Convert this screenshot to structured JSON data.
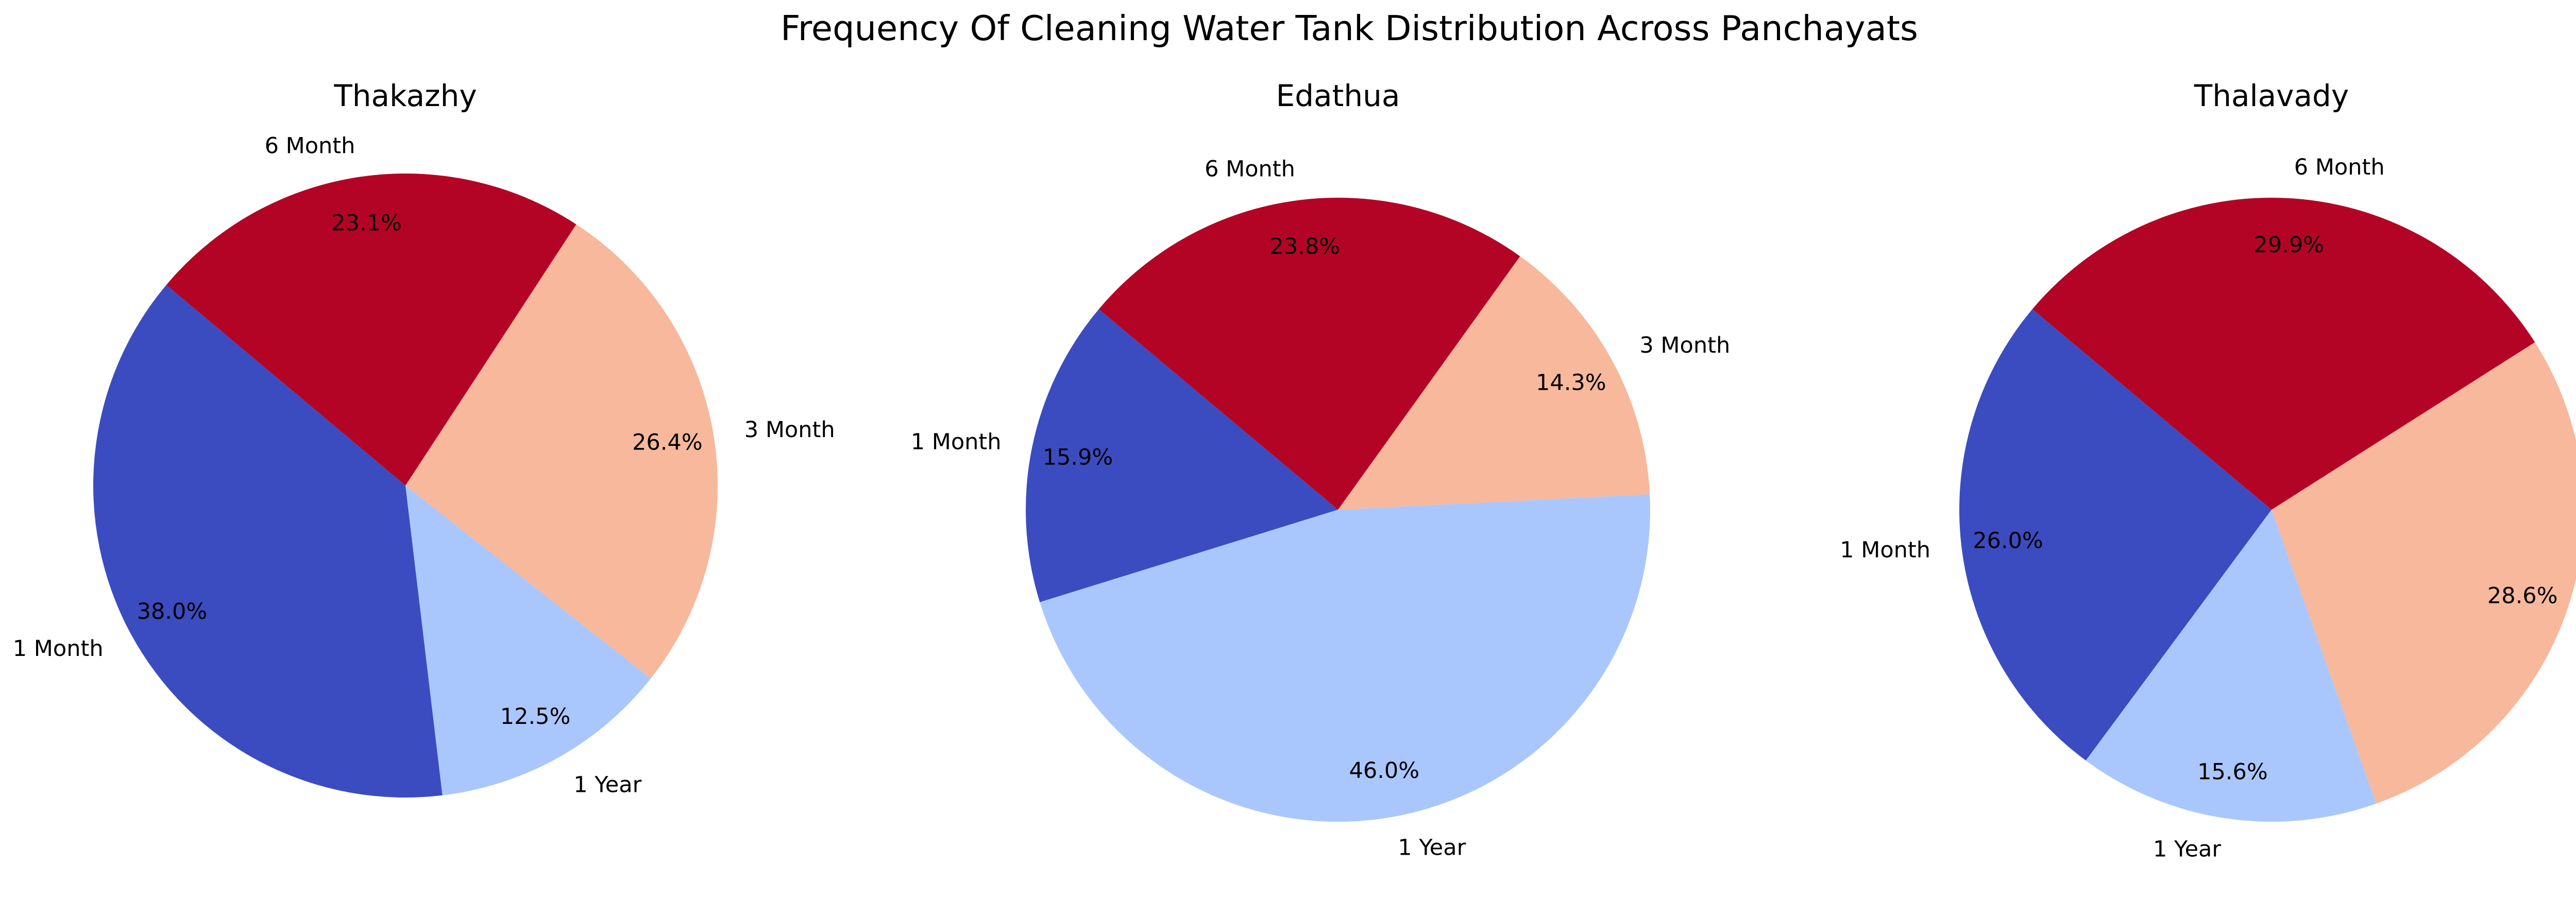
{
  "figure": {
    "title": "Frequency Of Cleaning Water Tank Distribution Across Panchayats"
  },
  "colors": {
    "1 Month": "#3b4cc0",
    "1 Year": "#aac7fd",
    "3 Month": "#f7b89c",
    "6 Month": "#b40426"
  },
  "chart_data": [
    {
      "type": "pie",
      "title": "Thakazhy",
      "categories": [
        "1 Month",
        "1 Year",
        "3 Month",
        "6 Month"
      ],
      "values": [
        38.0,
        12.5,
        26.4,
        23.1
      ],
      "value_labels": [
        "38.0%",
        "12.5%",
        "26.4%",
        "23.1%"
      ],
      "start_angle_deg": 140,
      "direction": "counterclockwise"
    },
    {
      "type": "pie",
      "title": "Edathua",
      "categories": [
        "1 Month",
        "1 Year",
        "3 Month",
        "6 Month"
      ],
      "values": [
        15.9,
        46.0,
        14.3,
        23.8
      ],
      "value_labels": [
        "15.9%",
        "46.0%",
        "14.3%",
        "23.8%"
      ],
      "start_angle_deg": 140,
      "direction": "counterclockwise"
    },
    {
      "type": "pie",
      "title": "Thalavady",
      "categories": [
        "1 Month",
        "1 Year",
        "3 Month",
        "6 Month"
      ],
      "values": [
        26.0,
        15.6,
        28.6,
        29.9
      ],
      "value_labels": [
        "26.0%",
        "15.6%",
        "28.6%",
        "29.9%"
      ],
      "start_angle_deg": 140,
      "direction": "counterclockwise"
    }
  ]
}
